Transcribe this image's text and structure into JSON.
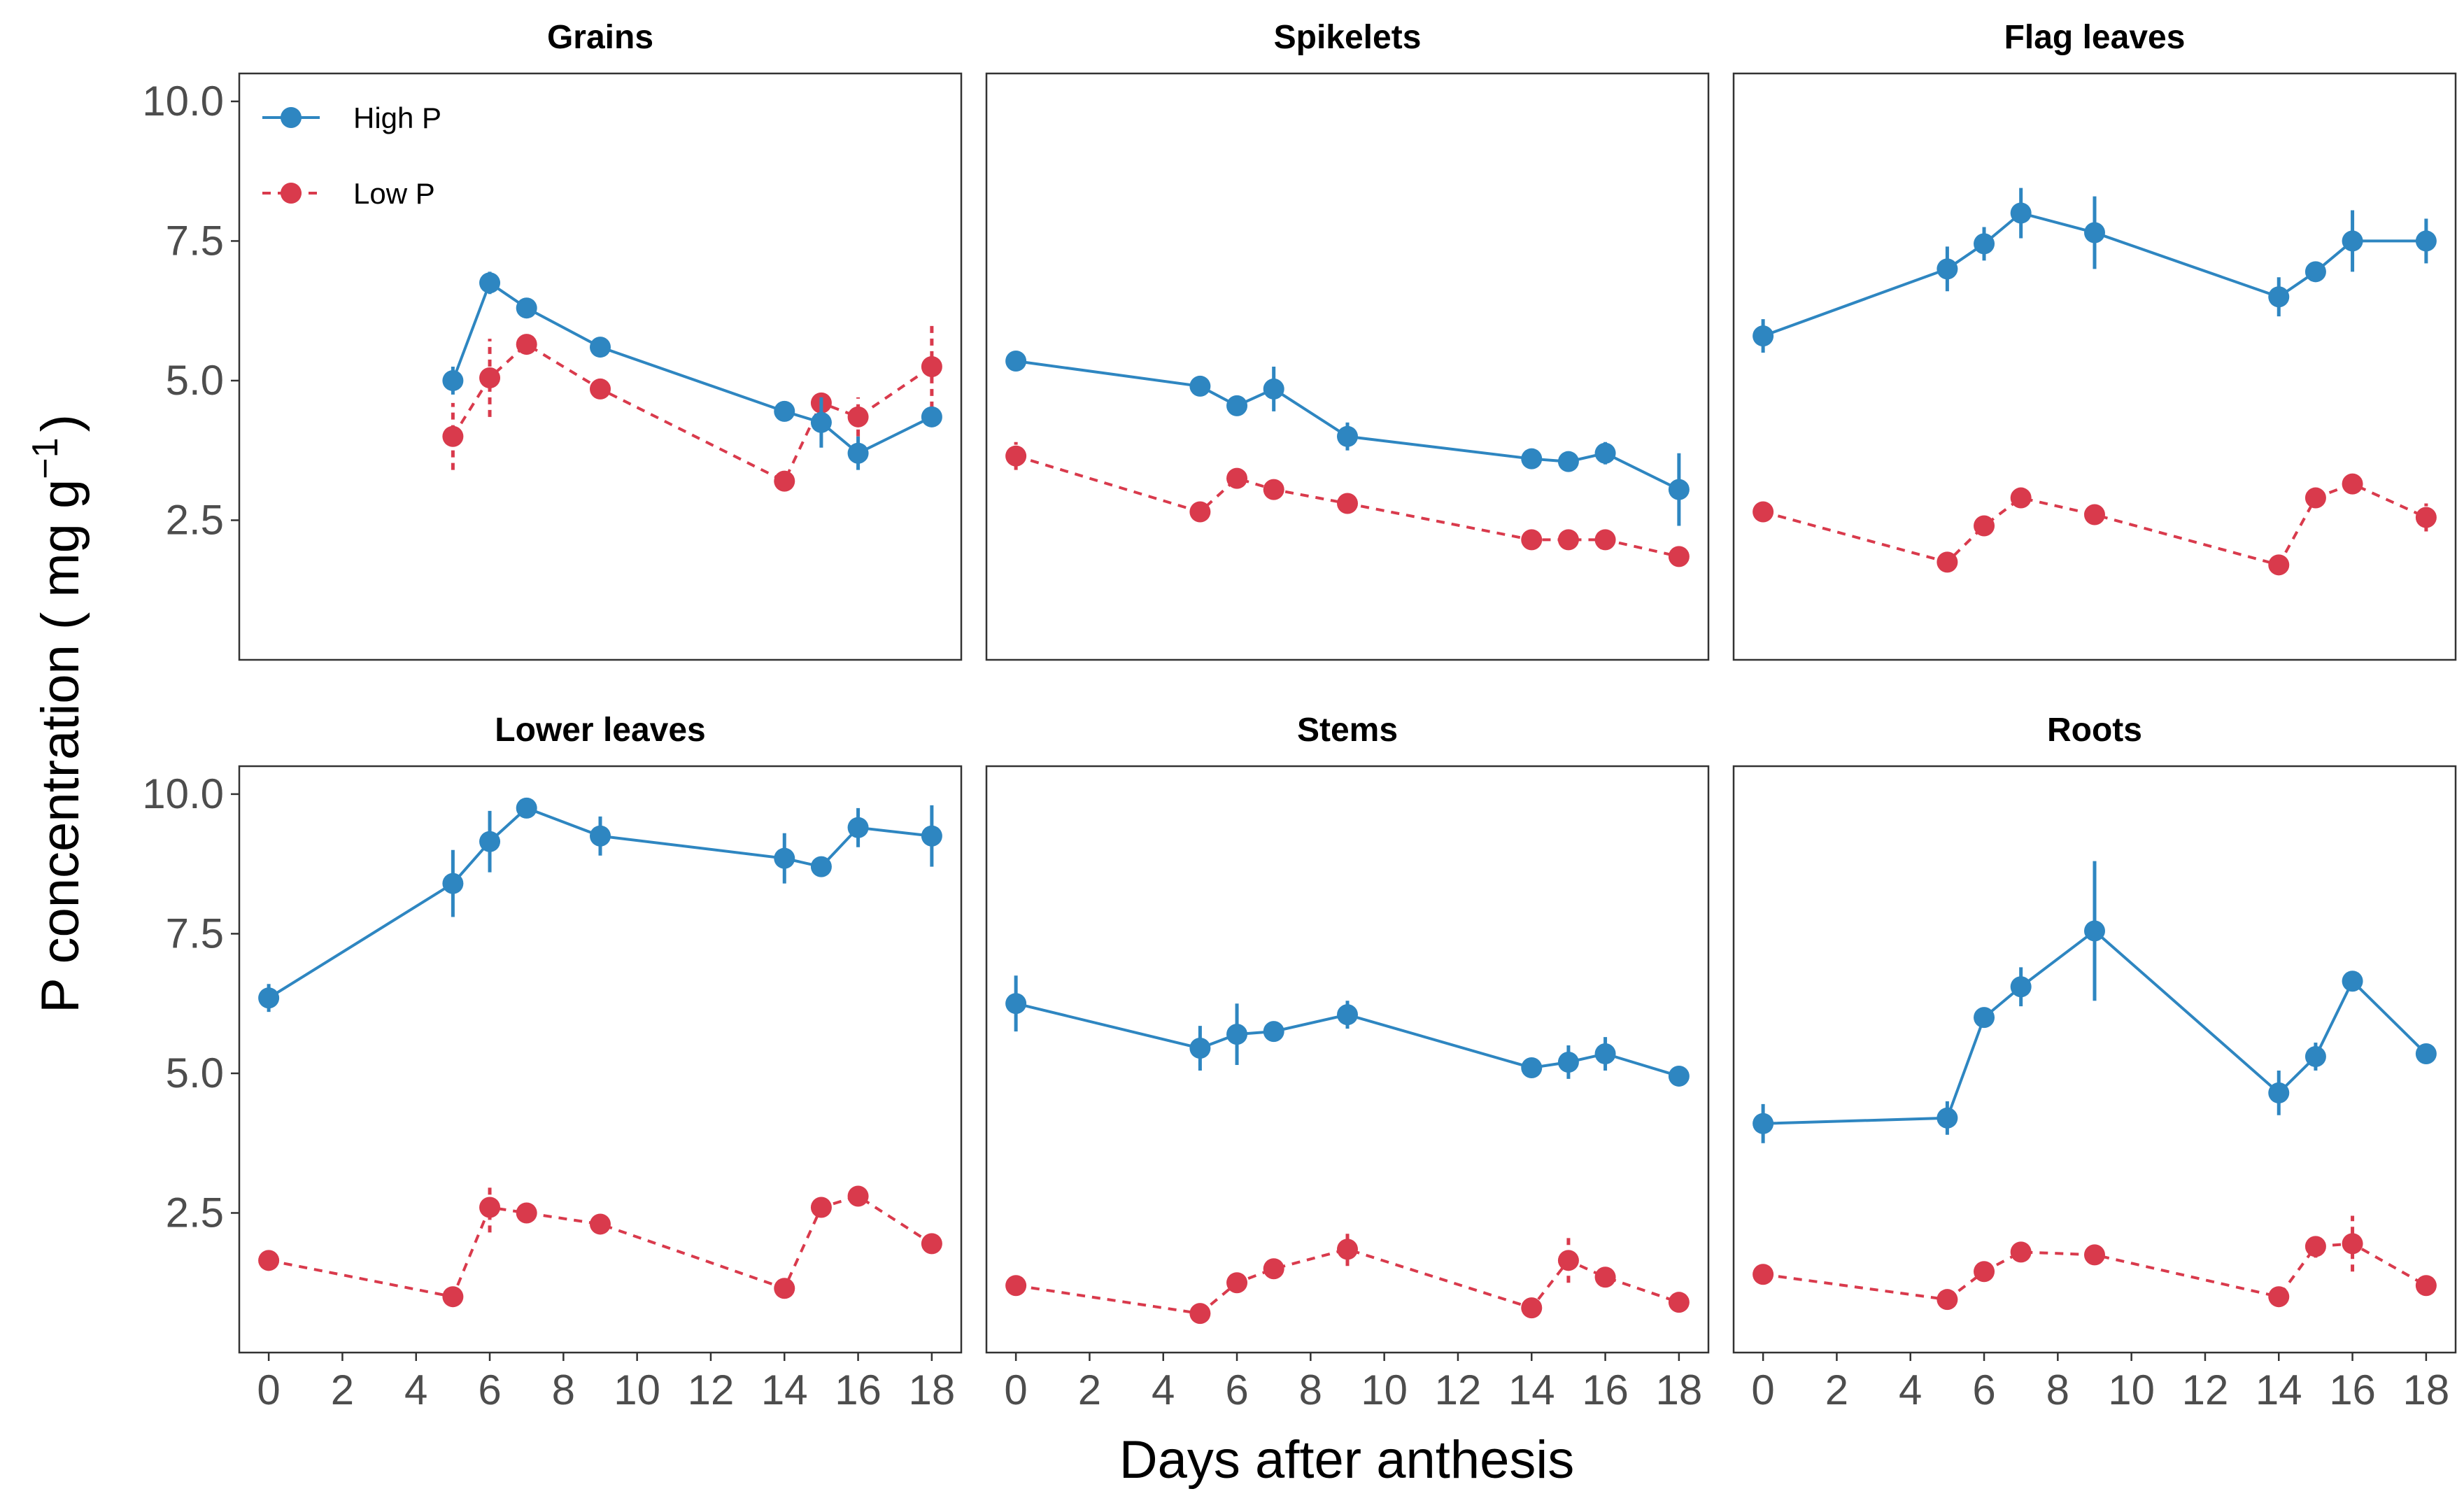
{
  "chart_data": {
    "type": "line",
    "title": "",
    "xlabel": "Days after anthesis",
    "ylabel_main": "P concentration ( mg g",
    "ylabel_sup": "−1",
    "ylabel_close": ")",
    "xlim": [
      -0.8,
      18.8
    ],
    "ylim": [
      0,
      10.5
    ],
    "xticks": [
      0,
      2,
      4,
      6,
      8,
      10,
      12,
      14,
      16,
      18
    ],
    "xtick_labels": [
      "0",
      "2",
      "4",
      "6",
      "8",
      "10",
      "12",
      "14",
      "16",
      "18"
    ],
    "yticks": [
      2.5,
      5.0,
      7.5,
      10.0
    ],
    "ytick_labels": [
      "2.5",
      "5.0",
      "7.5",
      "10.0"
    ],
    "legend": {
      "position": "top-left inside first panel",
      "entries": [
        {
          "name": "High P",
          "color": "#2e86c1",
          "linestyle": "solid"
        },
        {
          "name": "Low P",
          "color": "#d93a4c",
          "linestyle": "dashed"
        }
      ]
    },
    "panels": [
      {
        "title": "Grains",
        "series": [
          {
            "name": "High P",
            "x": [
              5,
              6,
              7,
              9,
              14,
              15,
              16,
              18
            ],
            "y": [
              5.0,
              6.75,
              6.3,
              5.6,
              4.45,
              4.25,
              3.7,
              4.35
            ],
            "err": [
              0.25,
              0.2,
              0.12,
              0.12,
              0.1,
              0.45,
              0.3,
              0.12
            ]
          },
          {
            "name": "Low P",
            "x": [
              5,
              6,
              7,
              9,
              14,
              15,
              16,
              18
            ],
            "y": [
              4.0,
              5.05,
              5.65,
              4.85,
              3.2,
              4.6,
              4.35,
              5.25
            ],
            "err": [
              0.6,
              0.7,
              0.15,
              0.12,
              0.1,
              0.1,
              0.35,
              0.75
            ]
          }
        ]
      },
      {
        "title": "Spikelets",
        "series": [
          {
            "name": "High P",
            "x": [
              0,
              5,
              6,
              7,
              9,
              14,
              15,
              16,
              18
            ],
            "y": [
              5.35,
              4.9,
              4.55,
              4.85,
              4.0,
              3.6,
              3.55,
              3.7,
              3.05
            ],
            "err": [
              0.1,
              0.1,
              0.12,
              0.4,
              0.25,
              0.1,
              0.1,
              0.2,
              0.65
            ]
          },
          {
            "name": "Low P",
            "x": [
              0,
              5,
              6,
              7,
              9,
              14,
              15,
              16,
              18
            ],
            "y": [
              3.65,
              2.65,
              3.25,
              3.05,
              2.8,
              2.15,
              2.15,
              2.15,
              1.85
            ],
            "err": [
              0.25,
              0.1,
              0.15,
              0.1,
              0.1,
              0.08,
              0.08,
              0.08,
              0.08
            ]
          }
        ]
      },
      {
        "title": "Flag leaves",
        "series": [
          {
            "name": "High P",
            "x": [
              0,
              5,
              6,
              7,
              9,
              14,
              15,
              16,
              18
            ],
            "y": [
              5.8,
              7.0,
              7.45,
              8.0,
              7.65,
              6.5,
              6.95,
              7.5,
              7.5
            ],
            "err": [
              0.3,
              0.4,
              0.3,
              0.45,
              0.65,
              0.35,
              0.15,
              0.55,
              0.4
            ]
          },
          {
            "name": "Low P",
            "x": [
              0,
              5,
              6,
              7,
              9,
              14,
              15,
              16,
              18
            ],
            "y": [
              2.65,
              1.75,
              2.4,
              2.9,
              2.6,
              1.7,
              2.9,
              3.15,
              2.55
            ],
            "err": [
              0.1,
              0.1,
              0.15,
              0.1,
              0.1,
              0.1,
              0.1,
              0.15,
              0.25
            ]
          }
        ]
      },
      {
        "title": "Lower leaves",
        "series": [
          {
            "name": "High P",
            "x": [
              0,
              5,
              6,
              7,
              9,
              14,
              15,
              16,
              18
            ],
            "y": [
              6.35,
              8.4,
              9.15,
              9.75,
              9.25,
              8.85,
              8.7,
              9.4,
              9.25
            ],
            "err": [
              0.25,
              0.6,
              0.55,
              0.15,
              0.35,
              0.45,
              0.15,
              0.35,
              0.55
            ]
          },
          {
            "name": "Low P",
            "x": [
              0,
              5,
              6,
              7,
              9,
              14,
              15,
              16,
              18
            ],
            "y": [
              1.65,
              1.0,
              2.6,
              2.5,
              2.3,
              1.15,
              2.6,
              2.8,
              1.95
            ],
            "err": [
              0.1,
              0.1,
              0.45,
              0.15,
              0.12,
              0.08,
              0.1,
              0.1,
              0.1
            ]
          }
        ]
      },
      {
        "title": "Stems",
        "series": [
          {
            "name": "High P",
            "x": [
              0,
              5,
              6,
              7,
              9,
              14,
              15,
              16,
              18
            ],
            "y": [
              6.25,
              5.45,
              5.7,
              5.75,
              6.05,
              5.1,
              5.2,
              5.35,
              4.95
            ],
            "err": [
              0.5,
              0.4,
              0.55,
              0.15,
              0.25,
              0.12,
              0.3,
              0.3,
              0.12
            ]
          },
          {
            "name": "Low P",
            "x": [
              0,
              5,
              6,
              7,
              9,
              14,
              15,
              16,
              18
            ],
            "y": [
              1.2,
              0.7,
              1.25,
              1.5,
              1.85,
              0.8,
              1.65,
              1.35,
              0.9
            ],
            "err": [
              0.08,
              0.08,
              0.12,
              0.1,
              0.3,
              0.08,
              0.4,
              0.15,
              0.08
            ]
          }
        ]
      },
      {
        "title": "Roots",
        "series": [
          {
            "name": "High P",
            "x": [
              0,
              5,
              6,
              7,
              9,
              14,
              15,
              16,
              18
            ],
            "y": [
              4.1,
              4.2,
              6.0,
              6.55,
              7.55,
              4.65,
              5.3,
              6.65,
              5.35
            ],
            "err": [
              0.35,
              0.3,
              0.15,
              0.35,
              1.25,
              0.4,
              0.25,
              0.15,
              0.12
            ]
          },
          {
            "name": "Low P",
            "x": [
              0,
              5,
              6,
              7,
              9,
              14,
              15,
              16,
              18
            ],
            "y": [
              1.4,
              0.95,
              1.45,
              1.8,
              1.75,
              1.0,
              1.9,
              1.95,
              1.2
            ],
            "err": [
              0.08,
              0.08,
              0.15,
              0.15,
              0.1,
              0.08,
              0.2,
              0.5,
              0.08
            ]
          }
        ]
      }
    ]
  }
}
